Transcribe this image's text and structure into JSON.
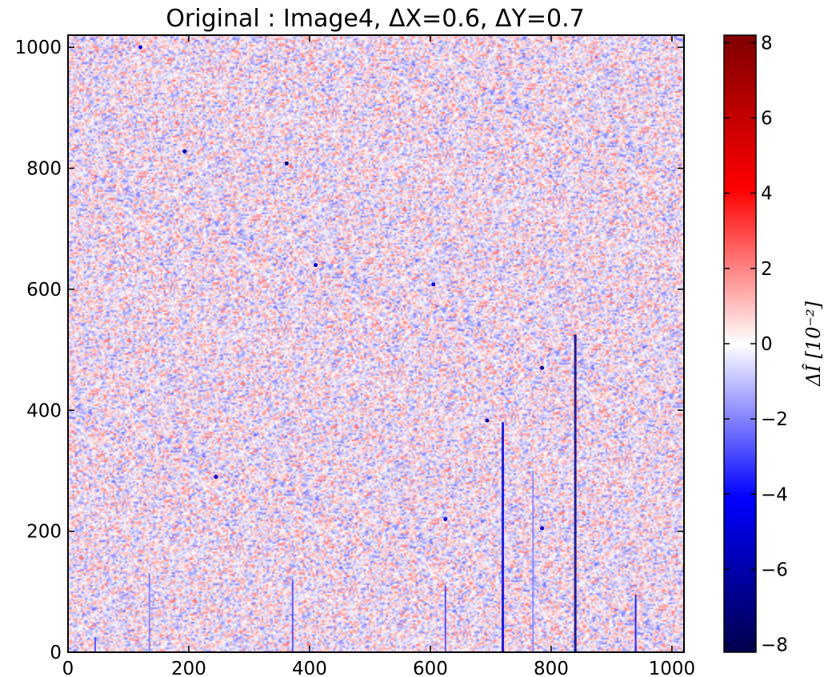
{
  "chart_data": {
    "type": "heatmap",
    "title": "Original : Image4, ΔX=0.6, ΔY=0.7",
    "xlim": [
      0,
      1020
    ],
    "ylim": [
      0,
      1020
    ],
    "x_ticks": [
      0,
      200,
      400,
      600,
      800,
      1000
    ],
    "y_ticks": [
      0,
      200,
      400,
      600,
      800,
      1000
    ],
    "colorbar": {
      "label": "ΔÎ [10⁻²]",
      "range": [
        -8.2,
        8.2
      ],
      "ticks": [
        8,
        6,
        4,
        2,
        0,
        -2,
        -4,
        -6,
        -8
      ],
      "tick_labels": [
        "8",
        "6",
        "4",
        "2",
        "0",
        "−2",
        "−4",
        "−6",
        "−8"
      ],
      "colormap": "seismic",
      "colors": [
        "#00004c",
        "#0000ff",
        "#ffffff",
        "#ff0000",
        "#800000"
      ]
    },
    "background_noise": {
      "distribution": "random",
      "amplitude_approx": 2.5
    },
    "vertical_streaks": [
      {
        "x": 45,
        "y_top": 25,
        "strength": -3
      },
      {
        "x": 135,
        "y_top": 130,
        "strength": -2
      },
      {
        "x": 372,
        "y_top": 120,
        "strength": -3
      },
      {
        "x": 625,
        "y_top": 110,
        "strength": -3
      },
      {
        "x": 720,
        "y_top": 380,
        "strength": -5
      },
      {
        "x": 770,
        "y_top": 300,
        "strength": -2
      },
      {
        "x": 840,
        "y_top": 525,
        "strength": -7
      },
      {
        "x": 940,
        "y_top": 95,
        "strength": -4
      }
    ],
    "spots": [
      {
        "x": 362,
        "y": 808,
        "value": -7
      },
      {
        "x": 193,
        "y": 828,
        "value": -6
      },
      {
        "x": 694,
        "y": 383,
        "value": -6
      },
      {
        "x": 605,
        "y": 608,
        "value": -5
      },
      {
        "x": 410,
        "y": 640,
        "value": -5
      },
      {
        "x": 245,
        "y": 290,
        "value": -5
      },
      {
        "x": 785,
        "y": 470,
        "value": -6
      },
      {
        "x": 625,
        "y": 220,
        "value": -5
      },
      {
        "x": 785,
        "y": 205,
        "value": -5
      },
      {
        "x": 120,
        "y": 1000,
        "value": -4
      }
    ]
  }
}
